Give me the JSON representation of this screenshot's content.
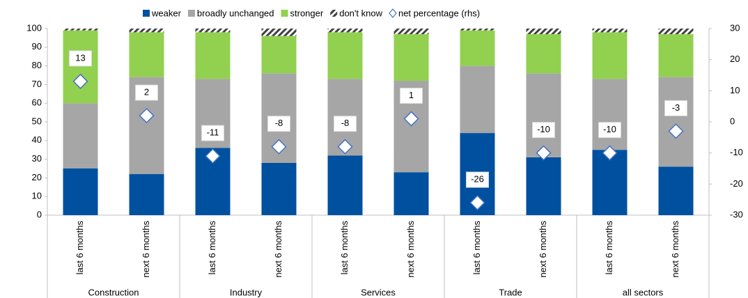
{
  "chart_data": {
    "type": "bar",
    "stacked": true,
    "groups": [
      "Construction",
      "Industry",
      "Services",
      "Trade",
      "all sectors"
    ],
    "categories": [
      "last 6 months",
      "next 6 months",
      "last 6 months",
      "next 6 months",
      "last 6 months",
      "next 6 months",
      "last 6 months",
      "next 6 months",
      "last 6 months",
      "next 6 months"
    ],
    "series": [
      {
        "name": "weaker",
        "color": "#0050a0",
        "values": [
          25,
          22,
          36,
          28,
          32,
          23,
          44,
          31,
          35,
          26
        ]
      },
      {
        "name": "broadly unchanged",
        "color": "#a6a6a6",
        "values": [
          35,
          52,
          37,
          48,
          41,
          49,
          36,
          45,
          38,
          48
        ]
      },
      {
        "name": "stronger",
        "color": "#92d050",
        "values": [
          39,
          24,
          25,
          20,
          25,
          25,
          19,
          21,
          25,
          23
        ]
      },
      {
        "name": "don't know",
        "color": "#404040",
        "pattern": "hatch",
        "values": [
          1,
          2,
          2,
          4,
          2,
          3,
          1,
          3,
          2,
          3
        ]
      },
      {
        "name": "net percentage (rhs)",
        "color": "#4472c4",
        "axis": "y2",
        "marker": "diamond",
        "values": [
          13,
          2,
          -11,
          -8,
          -8,
          1,
          -26,
          -10,
          -10,
          -3
        ]
      }
    ],
    "ylim": [
      0,
      100
    ],
    "yticks": [
      0,
      10,
      20,
      30,
      40,
      50,
      60,
      70,
      80,
      90,
      100
    ],
    "y2lim": [
      -30,
      30
    ],
    "y2ticks": [
      -30,
      -20,
      -10,
      0,
      10,
      20,
      30
    ],
    "legend": "top",
    "grid": false
  }
}
